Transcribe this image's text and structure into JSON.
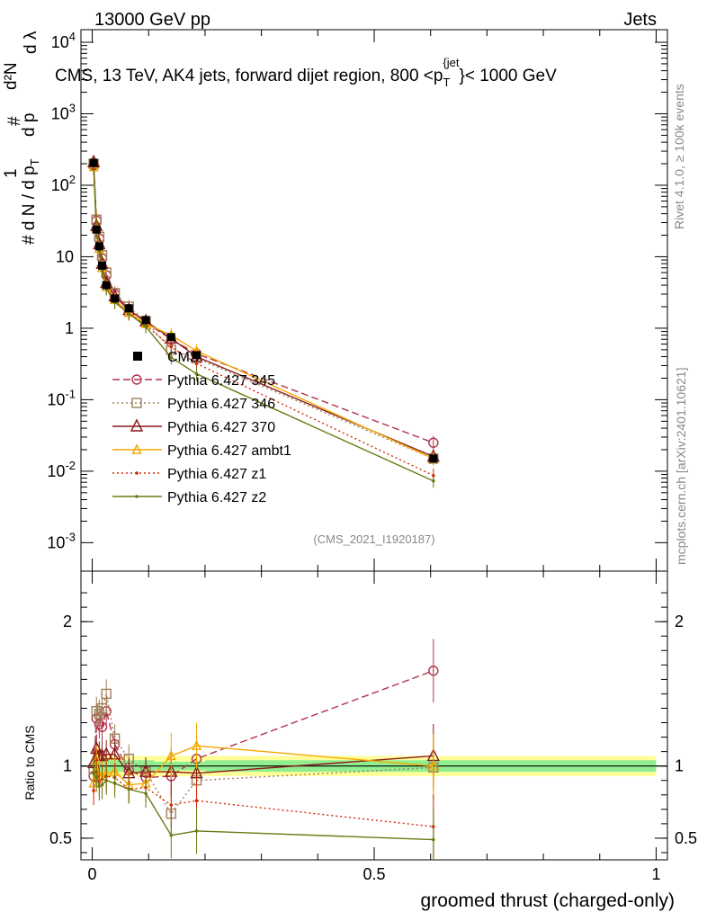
{
  "header": {
    "left": "13000 GeV pp",
    "right": "Jets"
  },
  "title": "CMS, 13 TeV, AK4 jets, forward dijet region, 800 <p_T^{jet}< 1000 GeV",
  "side_labels": {
    "rivet": "Rivet 4.1.0, ≥ 100k events",
    "mcplots": "mcplots.cern.ch [arXiv:2401.10621]"
  },
  "analysis_tag": "(CMS_2021_I1920187)",
  "colors": {
    "data": "#000000",
    "p345": "#b2334c",
    "p346": "#a0805a",
    "p370": "#8b1a1a",
    "ambt1": "#f5a800",
    "z1": "#d62a0a",
    "z2": "#6b7a12",
    "band_inner": "#90ee90",
    "band_outer": "#ffff99"
  },
  "chart_data": {
    "type": "line",
    "title": "CMS, 13 TeV, AK4 jets, forward dijet region, 800 <p_T^{jet}< 1000 GeV",
    "xlabel": "groomed thrust (charged-only)",
    "ylabel": "1/dN/dp_T # d²N/dp_T dλ",
    "ratio_ylabel": "Ratio to CMS",
    "xlim": [
      -0.02,
      1.02
    ],
    "ylim": [
      0.0004,
      15000
    ],
    "yscale": "log",
    "ratio_ylim": [
      0.35,
      2.35
    ],
    "y_tick_labels": [
      "10^-3",
      "10^-2",
      "10^-1",
      "1",
      "10",
      "10^2",
      "10^3",
      "10^4"
    ],
    "x_tick_labels": [
      "0",
      "0.5",
      "1"
    ],
    "ratio_tick_labels": [
      "0.5",
      "1",
      "2"
    ],
    "x": [
      0.0025,
      0.0075,
      0.0125,
      0.0175,
      0.025,
      0.04,
      0.065,
      0.095,
      0.14,
      0.185,
      0.605
    ],
    "data": [
      205,
      24,
      14,
      7.5,
      4.0,
      2.6,
      1.9,
      1.3,
      0.75,
      0.42,
      0.015
    ],
    "series": [
      {
        "name": "Pythia 6.427 345",
        "style": "dashed-circle",
        "values": [
          190,
          32,
          18,
          9.5,
          5.5,
          3.0,
          1.85,
          1.2,
          0.7,
          0.44,
          0.025
        ]
      },
      {
        "name": "Pythia 6.427 346",
        "style": "dotted-square",
        "values": [
          200,
          33,
          19,
          10.5,
          6.0,
          3.1,
          2.0,
          1.25,
          0.5,
          0.38,
          0.015
        ]
      },
      {
        "name": "Pythia 6.427 370",
        "style": "solid-triangle",
        "values": [
          210,
          27,
          15,
          8.0,
          4.3,
          2.8,
          1.8,
          1.25,
          0.72,
          0.4,
          0.016
        ]
      },
      {
        "name": "Pythia 6.427 ambt1",
        "style": "solid-triangle-small",
        "values": [
          180,
          25,
          13,
          7.0,
          3.8,
          2.5,
          1.65,
          1.15,
          0.8,
          0.48,
          0.015
        ]
      },
      {
        "name": "Pythia 6.427 z1",
        "style": "dotted-dot",
        "values": [
          170,
          23,
          12.5,
          6.8,
          3.7,
          2.4,
          1.6,
          1.1,
          0.55,
          0.32,
          0.0087
        ]
      },
      {
        "name": "Pythia 6.427 z2",
        "style": "solid-dot",
        "values": [
          195,
          22,
          12,
          6.5,
          3.6,
          2.3,
          1.6,
          1.05,
          0.39,
          0.23,
          0.0073
        ]
      }
    ],
    "ratios": [
      {
        "name": "Pythia 6.427 345",
        "values": [
          0.93,
          1.33,
          1.29,
          1.27,
          1.38,
          1.15,
          0.97,
          0.92,
          0.93,
          1.05,
          1.66
        ]
      },
      {
        "name": "Pythia 6.427 346",
        "values": [
          0.98,
          1.38,
          1.36,
          1.4,
          1.5,
          1.19,
          1.05,
          0.96,
          0.67,
          0.9,
          0.99
        ]
      },
      {
        "name": "Pythia 6.427 370",
        "values": [
          1.02,
          1.12,
          1.07,
          1.07,
          1.08,
          1.08,
          0.95,
          0.96,
          0.96,
          0.95,
          1.07
        ]
      },
      {
        "name": "Pythia 6.427 ambt1",
        "values": [
          0.88,
          1.04,
          0.93,
          0.93,
          0.95,
          0.96,
          0.87,
          0.88,
          1.07,
          1.14,
          1.0
        ]
      },
      {
        "name": "Pythia 6.427 z1",
        "values": [
          0.83,
          0.96,
          0.89,
          0.91,
          0.93,
          0.92,
          0.84,
          0.85,
          0.73,
          0.76,
          0.58
        ]
      },
      {
        "name": "Pythia 6.427 z2",
        "values": [
          0.95,
          0.92,
          0.86,
          0.87,
          0.9,
          0.88,
          0.84,
          0.81,
          0.52,
          0.55,
          0.49
        ]
      }
    ],
    "legend": {
      "placement": "middle-left",
      "data_label": "CMS",
      "entries": [
        "Pythia 6.427 345",
        "Pythia 6.427 346",
        "Pythia 6.427 370",
        "Pythia 6.427 ambt1",
        "Pythia 6.427 z1",
        "Pythia 6.427 z2"
      ]
    }
  }
}
